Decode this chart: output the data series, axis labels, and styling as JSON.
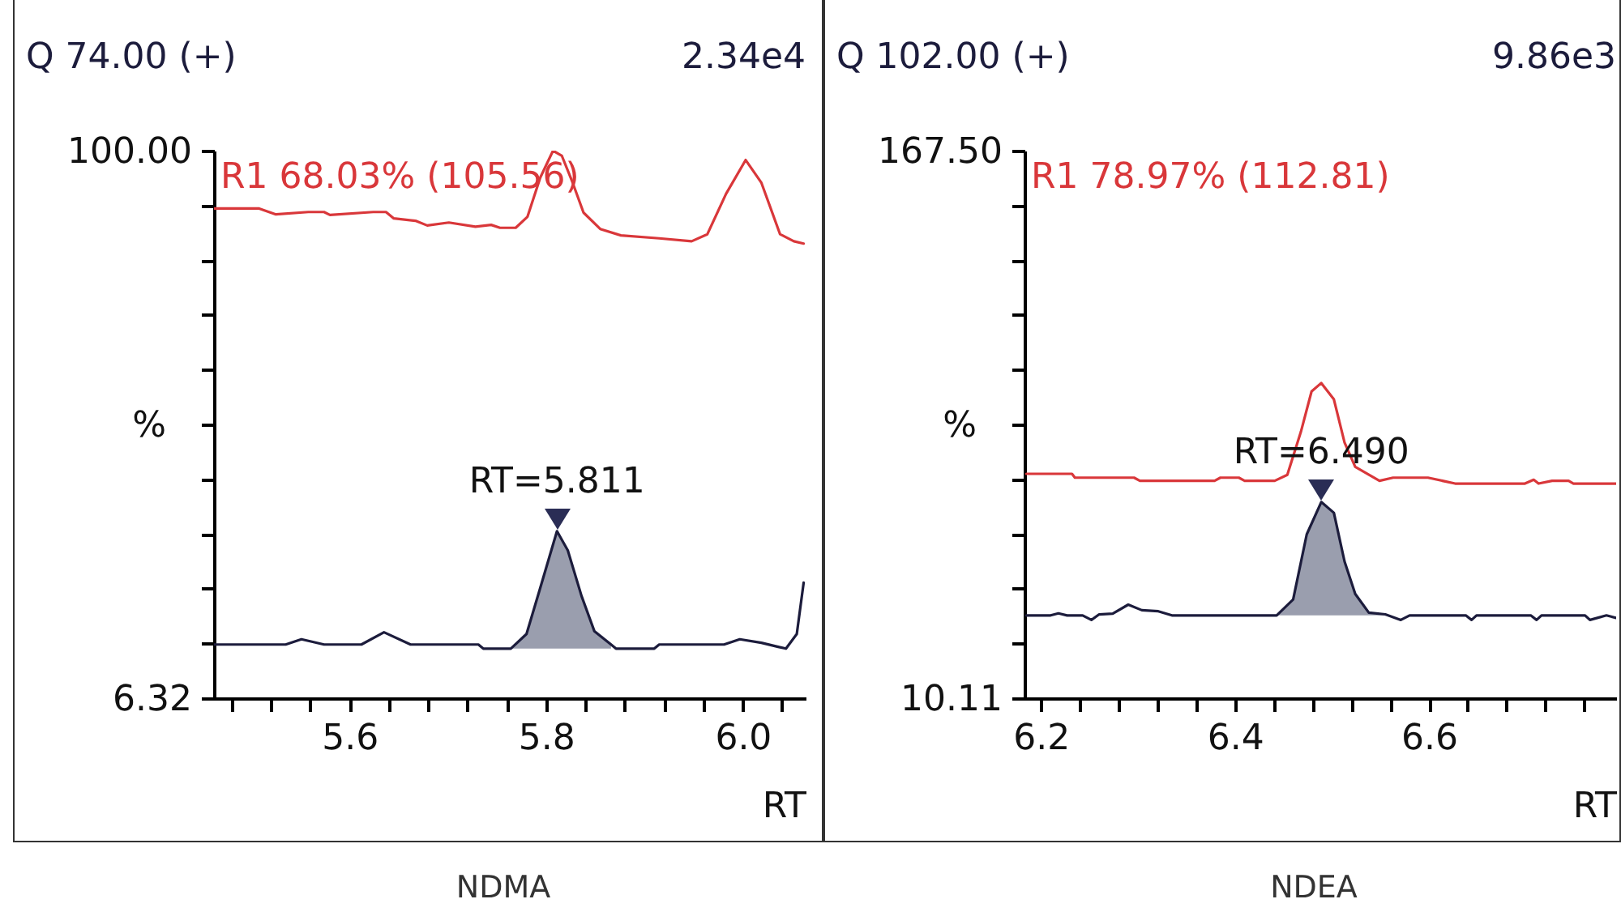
{
  "chart_data": [
    {
      "type": "line",
      "title": "Q 74.00 (+)",
      "subtitle": "2.34e4",
      "xlabel": "RT",
      "ylabel": "%",
      "xlim": [
        5.462,
        6.064
      ],
      "ylim": [
        6.32,
        100
      ],
      "xticks": [
        {
          "value": 5.48,
          "label": null
        },
        {
          "value": 5.52,
          "label": null
        },
        {
          "value": 5.56,
          "label": null
        },
        5.6,
        {
          "value": 5.64,
          "label": null
        },
        {
          "value": 5.68,
          "label": null
        },
        {
          "value": 5.72,
          "label": null
        },
        {
          "value": 5.76,
          "label": null
        },
        5.8,
        {
          "value": 5.84,
          "label": null
        },
        {
          "value": 5.88,
          "label": null
        },
        {
          "value": 5.92,
          "label": null
        },
        {
          "value": 5.96,
          "label": null
        },
        {
          "value": 6.0,
          "label": "6.0"
        },
        {
          "value": 6.04,
          "label": null
        }
      ],
      "yticks": [
        {
          "value": 100,
          "label": "100.00"
        },
        {
          "value": 90.632,
          "label": null
        },
        {
          "value": 81.264,
          "label": null
        },
        {
          "value": 71.896,
          "label": null
        },
        {
          "value": 62.528,
          "label": null
        },
        {
          "value": 53.16,
          "label": null
        },
        {
          "value": 43.792,
          "label": null
        },
        {
          "value": 34.424,
          "label": null
        },
        {
          "value": 25.056,
          "label": null
        },
        {
          "value": 15.688,
          "label": null
        },
        6.32
      ],
      "series": [
        {
          "type": "area",
          "color": "#9a9eae",
          "x": [
            5.764,
            5.78,
            5.794,
            5.811,
            5.822,
            5.836,
            5.849,
            5.866
          ],
          "values": [
            14.8,
            17.3,
            25.2,
            34.9,
            31.6,
            23.8,
            17.8,
            15.5
          ]
        },
        {
          "type": "line",
          "color": "#1c1c3c",
          "x": [
            5.462,
            5.535,
            5.551,
            5.574,
            5.612,
            5.635,
            5.662,
            5.731,
            5.736,
            5.764,
            5.78,
            5.794,
            5.811,
            5.822,
            5.836,
            5.849,
            5.866,
            5.871,
            5.91,
            5.915,
            5.981,
            5.997,
            6.019,
            6.036,
            6.044,
            6.055,
            6.062
          ],
          "values": [
            15.5,
            15.5,
            16.4,
            15.5,
            15.5,
            17.6,
            15.5,
            15.5,
            14.8,
            14.8,
            17.3,
            25.2,
            34.9,
            31.6,
            23.8,
            17.8,
            15.5,
            14.8,
            14.8,
            15.5,
            15.5,
            16.4,
            15.8,
            15.1,
            14.8,
            17.3,
            26.1
          ]
        },
        {
          "type": "line",
          "name": "R1 68.03% (105.56)",
          "color": "#d9373a",
          "x": [
            5.462,
            5.508,
            5.525,
            5.558,
            5.574,
            5.58,
            5.624,
            5.637,
            5.645,
            5.667,
            5.679,
            5.701,
            5.728,
            5.744,
            5.753,
            5.769,
            5.781,
            5.794,
            5.807,
            5.816,
            5.827,
            5.838,
            5.855,
            5.876,
            5.915,
            5.948,
            5.964,
            5.983,
            6.003,
            6.019,
            6.038,
            6.052,
            6.062
          ],
          "values": [
            90.1,
            90.1,
            89.1,
            89.5,
            89.5,
            89.0,
            89.5,
            89.5,
            88.4,
            88.0,
            87.2,
            87.7,
            87.0,
            87.3,
            86.8,
            86.8,
            88.7,
            95.4,
            100,
            99.1,
            94.5,
            89.4,
            86.6,
            85.5,
            85.0,
            84.5,
            85.7,
            92.6,
            98.4,
            94.5,
            85.7,
            84.5,
            84.1
          ]
        }
      ],
      "annotations": [
        {
          "text": "RT=5.811",
          "x": 5.811,
          "y": 34.9
        },
        "NDMA"
      ]
    },
    {
      "type": "line",
      "title": "Q 102.00 (+)",
      "subtitle": "9.86e3",
      "xlabel": "RT",
      "ylabel": "%",
      "xlim": [
        6.183,
        6.793
      ],
      "ylim": [
        10.11,
        167.5
      ],
      "xticks": [
        {
          "value": 6.2,
          "label": "6.2"
        },
        {
          "value": 6.24,
          "label": null
        },
        {
          "value": 6.28,
          "label": null
        },
        {
          "value": 6.32,
          "label": null
        },
        {
          "value": 6.36,
          "label": null
        },
        6.4,
        {
          "value": 6.44,
          "label": null
        },
        {
          "value": 6.48,
          "label": null
        },
        {
          "value": 6.52,
          "label": null
        },
        {
          "value": 6.56,
          "label": null
        },
        6.6,
        {
          "value": 6.64,
          "label": null
        },
        {
          "value": 6.68,
          "label": null
        },
        {
          "value": 6.72,
          "label": null
        },
        {
          "value": 6.76,
          "label": null
        }
      ],
      "yticks": [
        {
          "value": 167.5,
          "label": "167.50"
        },
        {
          "value": 151.761,
          "label": null
        },
        {
          "value": 136.022,
          "label": null
        },
        {
          "value": 120.283,
          "label": null
        },
        {
          "value": 104.544,
          "label": null
        },
        {
          "value": 88.805,
          "label": null
        },
        {
          "value": 73.066,
          "label": null
        },
        {
          "value": 57.327,
          "label": null
        },
        {
          "value": 41.588,
          "label": null
        },
        {
          "value": 25.849,
          "label": null
        },
        10.11
      ],
      "series": [
        {
          "type": "area",
          "color": "#9a9eae",
          "x": [
            6.443,
            6.46,
            6.474,
            6.489,
            6.502,
            6.513,
            6.524,
            6.538,
            6.555
          ],
          "values": [
            33.9,
            38.5,
            57.2,
            66.5,
            63.4,
            49.4,
            40.1,
            34.7,
            34.2
          ]
        },
        {
          "type": "line",
          "color": "#1c1c3c",
          "x": [
            6.185,
            6.21,
            6.218,
            6.227,
            6.243,
            6.252,
            6.26,
            6.274,
            6.29,
            6.304,
            6.321,
            6.335,
            6.443,
            6.46,
            6.474,
            6.489,
            6.502,
            6.513,
            6.524,
            6.538,
            6.555,
            6.571,
            6.58,
            6.638,
            6.644,
            6.649,
            6.705,
            6.711,
            6.716,
            6.761,
            6.766,
            6.783,
            6.793
          ],
          "values": [
            33.9,
            33.9,
            34.5,
            33.9,
            33.9,
            32.6,
            34.2,
            34.4,
            37.0,
            35.4,
            35.1,
            33.9,
            33.9,
            38.5,
            57.2,
            66.5,
            63.4,
            49.4,
            40.1,
            34.7,
            34.2,
            32.6,
            33.9,
            33.9,
            32.6,
            33.9,
            33.9,
            32.6,
            33.9,
            33.9,
            32.6,
            33.9,
            33.2
          ]
        },
        {
          "type": "line",
          "name": "R1 78.97% (112.81)",
          "color": "#d9373a",
          "x": [
            6.185,
            6.232,
            6.235,
            6.296,
            6.302,
            6.379,
            6.385,
            6.404,
            6.41,
            6.441,
            6.454,
            6.468,
            6.479,
            6.489,
            6.502,
            6.513,
            6.524,
            6.549,
            6.563,
            6.599,
            6.627,
            6.699,
            6.708,
            6.713,
            6.727,
            6.744,
            6.749,
            6.793
          ],
          "values": [
            74.6,
            74.6,
            73.5,
            73.5,
            72.6,
            72.6,
            73.5,
            73.5,
            72.6,
            72.6,
            74.3,
            86.7,
            98.3,
            100.7,
            96.0,
            83.6,
            76.6,
            72.6,
            73.5,
            73.5,
            71.8,
            71.8,
            72.9,
            71.8,
            72.6,
            72.6,
            71.8,
            71.8
          ]
        }
      ],
      "annotations": [
        {
          "text": "RT=6.490",
          "x": 6.489,
          "y": 66.5
        },
        "NDEA"
      ]
    }
  ]
}
